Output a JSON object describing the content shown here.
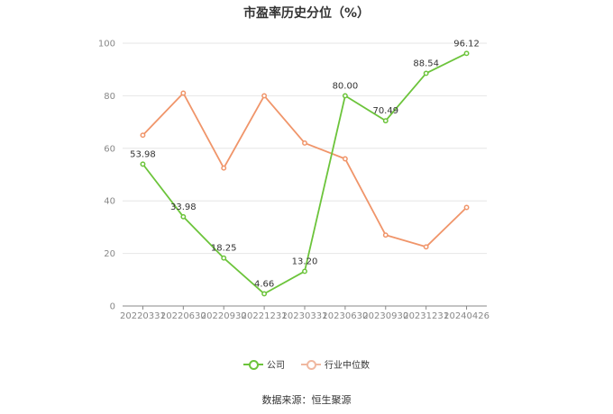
{
  "chart_data": {
    "type": "line",
    "title": "市盈率历史分位（%）",
    "categories": [
      "20220331",
      "20220630",
      "20220930",
      "20221231",
      "20230331",
      "20230630",
      "20230930",
      "20231231",
      "20240426"
    ],
    "ylim": [
      0,
      100
    ],
    "yticks": [
      0,
      20,
      40,
      60,
      80,
      100
    ],
    "grid": true,
    "legend_position": "bottom",
    "series": [
      {
        "name": "公司",
        "color": "#6cc43b",
        "values": [
          53.98,
          33.98,
          18.25,
          4.66,
          13.2,
          80.0,
          70.49,
          88.54,
          96.12
        ],
        "labels": [
          "53.98",
          "33.98",
          "18.25",
          "4.66",
          "13.20",
          "80.00",
          "70.49",
          "88.54",
          "96.12"
        ]
      },
      {
        "name": "行业中位数",
        "color": "#f0956a",
        "values": [
          65,
          81,
          52.5,
          80,
          62,
          56,
          27,
          22.5,
          37.5
        ]
      }
    ],
    "source": "数据来源：恒生聚源"
  }
}
